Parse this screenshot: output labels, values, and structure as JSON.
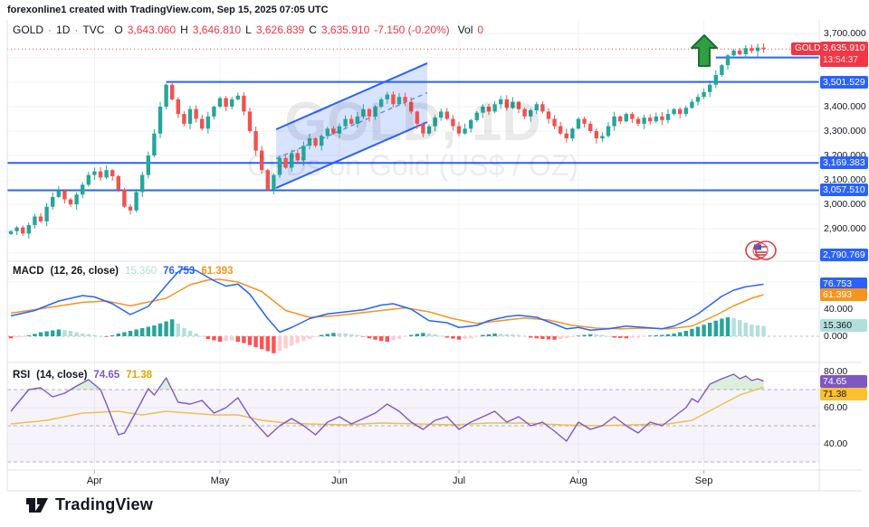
{
  "header": {
    "attribution": "forexonline1 created with TradingView.com, Sep 15, 2025 07:05 UTC"
  },
  "legend": {
    "symbol": "GOLD",
    "sep": "·",
    "interval": "1D",
    "exchange": "TVC",
    "o_label": "O",
    "o": "3,643.060",
    "h_label": "H",
    "h": "3,646.810",
    "l_label": "L",
    "l": "3,626.839",
    "c_label": "C",
    "c": "3,635.910",
    "change": "-7.150 (-0.20%)",
    "vol_label": "Vol",
    "vol": "0"
  },
  "watermark": {
    "title": "GOLD, 1D",
    "subtitle": "CFDs on Gold (US$ / OZ)"
  },
  "macd_legend": {
    "title": "MACD",
    "params": "(12, 26, close)",
    "hist": "15.360",
    "macd": "76.753",
    "signal": "61.393"
  },
  "rsi_legend": {
    "title": "RSI",
    "params": "(14, close)",
    "rsi": "74.65",
    "ma": "71.38"
  },
  "symbol_badge": {
    "text": "GOLD"
  },
  "current_price": {
    "price": "3,635.910",
    "countdown": "13:54:37"
  },
  "footer": {
    "brand": "TradingView"
  },
  "colors": {
    "up": "#26a69a",
    "down": "#ef5350",
    "level_blue": "#2962ff",
    "price_red": "#f23645",
    "macd_line": "#2962ff",
    "macd_signal": "#f7941e",
    "hist_pos": "#26a69a",
    "hist_pos_weak": "#b2dfdb",
    "hist_neg": "#ff5252",
    "hist_neg_weak": "#ffcdd2",
    "rsi_line": "#7e57c2",
    "rsi_ma": "#eac055",
    "grid": "#f0f3fa",
    "border": "#e0e3eb",
    "arrow_green": "#2f9e44"
  },
  "price_scale": {
    "plain_labels": [
      {
        "text": "3,700.000",
        "value": 3700
      },
      {
        "text": "3,400.000",
        "value": 3400
      },
      {
        "text": "3,300.000",
        "value": 3300
      },
      {
        "text": "3,200.000",
        "value": 3200
      },
      {
        "text": "3,100.000",
        "value": 3100
      },
      {
        "text": "3,000.000",
        "value": 3000
      },
      {
        "text": "2,900.000",
        "value": 2900
      }
    ],
    "badges": [
      {
        "text": "3,601.421",
        "value": 3601.421,
        "line_from_i": 118
      },
      {
        "text": "3,501.529",
        "value": 3501.529,
        "line_from_i": 26
      },
      {
        "text": "3,169.383",
        "value": 3169.383,
        "line_from_i": -0.6
      },
      {
        "text": "3,057.510",
        "value": 3057.51,
        "line_from_i": -0.6
      },
      {
        "text": "2,790.769",
        "value": 2790.769,
        "line_from_i": null
      }
    ],
    "gridline_values": [
      3700,
      3600,
      3500,
      3400,
      3300,
      3200,
      3100,
      3000,
      2900,
      2800
    ]
  },
  "macd_scale": {
    "plain_labels": [
      {
        "text": "40.000",
        "value": 40
      },
      {
        "text": "0.000",
        "value": 0
      }
    ],
    "badges": [
      {
        "text": "76.753",
        "value": 76.753,
        "color": "#2962ff",
        "text_color": "#ffffff"
      },
      {
        "text": "61.393",
        "value": 61.393,
        "color": "#f7941e",
        "text_color": "#ffffff"
      },
      {
        "text": "15.360",
        "value": 15.36,
        "color": "#b2dfdb",
        "text_color": "#131722"
      }
    ],
    "gridline_values": [
      80,
      40
    ]
  },
  "rsi_scale": {
    "plain_labels": [
      {
        "text": "80.00",
        "value": 80
      },
      {
        "text": "60.00",
        "value": 60
      },
      {
        "text": "40.00",
        "value": 40
      }
    ],
    "badges": [
      {
        "text": "74.65",
        "value": 74.65,
        "color": "#7e57c2",
        "text_color": "#ffffff"
      },
      {
        "text": "71.38",
        "value": 71.38,
        "color": "#fbc02d",
        "text_color": "#131722"
      }
    ],
    "gridline_values": [
      80,
      60,
      40
    ]
  },
  "chart_data": {
    "type": "candlestick-with-indicators",
    "symbol": "GOLD",
    "interval": "1D",
    "exchange": "TVC",
    "ohlc_readout": {
      "open": 3643.06,
      "high": 3646.81,
      "low": 3626.839,
      "close": 3635.91,
      "change": -7.15,
      "change_pct": -0.2,
      "volume": 0
    },
    "current_price": 3635.91,
    "price_axis_range": [
      2770,
      3755
    ],
    "closes": [
      2890,
      2905,
      2880,
      2915,
      2950,
      2930,
      2990,
      3030,
      3055,
      3020,
      3000,
      3040,
      3080,
      3120,
      3135,
      3110,
      3140,
      3115,
      3060,
      2990,
      2975,
      3050,
      3120,
      3200,
      3290,
      3400,
      3490,
      3430,
      3370,
      3330,
      3390,
      3350,
      3310,
      3360,
      3400,
      3435,
      3400,
      3430,
      3445,
      3380,
      3300,
      3220,
      3140,
      3060,
      3120,
      3190,
      3150,
      3210,
      3180,
      3240,
      3270,
      3240,
      3280,
      3310,
      3290,
      3320,
      3350,
      3330,
      3360,
      3390,
      3360,
      3400,
      3430,
      3450,
      3410,
      3440,
      3420,
      3380,
      3330,
      3290,
      3320,
      3355,
      3380,
      3350,
      3320,
      3290,
      3310,
      3345,
      3375,
      3400,
      3380,
      3410,
      3430,
      3395,
      3420,
      3390,
      3360,
      3385,
      3410,
      3380,
      3350,
      3320,
      3290,
      3270,
      3310,
      3350,
      3330,
      3300,
      3270,
      3280,
      3320,
      3360,
      3340,
      3370,
      3350,
      3330,
      3355,
      3340,
      3360,
      3345,
      3370,
      3390,
      3370,
      3395,
      3420,
      3440,
      3460,
      3490,
      3530,
      3570,
      3610,
      3630,
      3615,
      3640,
      3628,
      3642,
      3636
    ],
    "month_ticks": [
      {
        "label": "Apr",
        "i": 14
      },
      {
        "label": "May",
        "i": 35
      },
      {
        "label": "Jun",
        "i": 55
      },
      {
        "label": "Jul",
        "i": 75
      },
      {
        "label": "Aug",
        "i": 95
      },
      {
        "label": "Sep",
        "i": 116
      }
    ],
    "levels": [
      3601.421,
      3501.529,
      3169.383,
      3057.51,
      2790.769
    ],
    "channel": {
      "start_i": 44.4,
      "end_i": 69.7,
      "top_start": 3307,
      "top_end": 3578,
      "bottom_start": 3067,
      "bottom_end": 3337
    },
    "macd": {
      "params": [
        12,
        26,
        "close"
      ],
      "axis_range": [
        -35,
        103
      ],
      "line_anchors": [
        [
          0,
          30
        ],
        [
          4,
          38
        ],
        [
          8,
          52
        ],
        [
          12,
          60
        ],
        [
          14,
          58
        ],
        [
          17,
          48
        ],
        [
          20,
          32
        ],
        [
          23,
          44
        ],
        [
          26,
          75
        ],
        [
          28,
          95
        ],
        [
          29,
          100
        ],
        [
          31,
          97
        ],
        [
          34,
          82
        ],
        [
          36,
          74
        ],
        [
          38,
          77
        ],
        [
          40,
          62
        ],
        [
          43,
          26
        ],
        [
          45,
          6
        ],
        [
          47,
          13
        ],
        [
          50,
          26
        ],
        [
          53,
          33
        ],
        [
          56,
          36
        ],
        [
          59,
          39
        ],
        [
          62,
          46
        ],
        [
          64,
          48
        ],
        [
          67,
          40
        ],
        [
          70,
          23
        ],
        [
          73,
          20
        ],
        [
          75,
          13
        ],
        [
          78,
          16
        ],
        [
          80,
          23
        ],
        [
          83,
          29
        ],
        [
          85,
          31
        ],
        [
          88,
          28
        ],
        [
          91,
          18
        ],
        [
          93,
          11
        ],
        [
          95,
          13
        ],
        [
          97,
          9
        ],
        [
          100,
          11
        ],
        [
          103,
          15
        ],
        [
          106,
          13
        ],
        [
          109,
          11
        ],
        [
          111,
          15
        ],
        [
          113,
          23
        ],
        [
          115,
          33
        ],
        [
          117,
          46
        ],
        [
          119,
          59
        ],
        [
          121,
          68
        ],
        [
          123,
          73
        ],
        [
          126,
          76.753
        ]
      ],
      "signal_anchors": [
        [
          0,
          34
        ],
        [
          6,
          42
        ],
        [
          12,
          50
        ],
        [
          16,
          52
        ],
        [
          20,
          45
        ],
        [
          26,
          56
        ],
        [
          30,
          76
        ],
        [
          33,
          83
        ],
        [
          35,
          84
        ],
        [
          38,
          80
        ],
        [
          42,
          66
        ],
        [
          46,
          38
        ],
        [
          50,
          28
        ],
        [
          54,
          30
        ],
        [
          58,
          34
        ],
        [
          62,
          38
        ],
        [
          66,
          42
        ],
        [
          70,
          36
        ],
        [
          74,
          26
        ],
        [
          78,
          19
        ],
        [
          82,
          23
        ],
        [
          86,
          27
        ],
        [
          90,
          24
        ],
        [
          94,
          16
        ],
        [
          98,
          12
        ],
        [
          102,
          11
        ],
        [
          106,
          12
        ],
        [
          110,
          11
        ],
        [
          114,
          15
        ],
        [
          118,
          31
        ],
        [
          121,
          45
        ],
        [
          124,
          56
        ],
        [
          126,
          61.393
        ]
      ],
      "hist_anchors": [
        [
          0,
          -3
        ],
        [
          2,
          -1
        ],
        [
          5,
          6
        ],
        [
          8,
          10
        ],
        [
          10,
          8
        ],
        [
          12,
          4
        ],
        [
          14,
          2
        ],
        [
          16,
          -1
        ],
        [
          18,
          4
        ],
        [
          20,
          8
        ],
        [
          22,
          12
        ],
        [
          24,
          16
        ],
        [
          26,
          22
        ],
        [
          27,
          25
        ],
        [
          29,
          12
        ],
        [
          31,
          4
        ],
        [
          33,
          -4
        ],
        [
          35,
          -8
        ],
        [
          37,
          -6
        ],
        [
          39,
          -10
        ],
        [
          41,
          -16
        ],
        [
          43,
          -22
        ],
        [
          44,
          -25
        ],
        [
          46,
          -18
        ],
        [
          48,
          -10
        ],
        [
          50,
          -4
        ],
        [
          52,
          2
        ],
        [
          54,
          5
        ],
        [
          56,
          4
        ],
        [
          58,
          2
        ],
        [
          60,
          -3
        ],
        [
          62,
          -7
        ],
        [
          63,
          -8
        ],
        [
          65,
          -4
        ],
        [
          67,
          2
        ],
        [
          69,
          5
        ],
        [
          71,
          3
        ],
        [
          73,
          -2
        ],
        [
          75,
          -5
        ],
        [
          77,
          -3
        ],
        [
          79,
          2
        ],
        [
          81,
          4
        ],
        [
          83,
          3
        ],
        [
          85,
          2
        ],
        [
          87,
          -2
        ],
        [
          89,
          -4
        ],
        [
          91,
          -5
        ],
        [
          93,
          -3
        ],
        [
          95,
          1
        ],
        [
          97,
          3
        ],
        [
          99,
          2
        ],
        [
          101,
          -2
        ],
        [
          103,
          -3
        ],
        [
          105,
          -2
        ],
        [
          107,
          1
        ],
        [
          109,
          2
        ],
        [
          111,
          4
        ],
        [
          113,
          8
        ],
        [
          115,
          14
        ],
        [
          117,
          20
        ],
        [
          119,
          26
        ],
        [
          120,
          28
        ],
        [
          121,
          27
        ],
        [
          122,
          24
        ],
        [
          123,
          20
        ],
        [
          124,
          17
        ],
        [
          126,
          15.36
        ]
      ],
      "last_values": {
        "macd": 76.753,
        "signal": 61.393,
        "hist": 15.36
      }
    },
    "rsi": {
      "params": [
        14,
        "close"
      ],
      "axis_range": [
        25,
        85
      ],
      "guides": [
        70,
        50,
        30
      ],
      "band": [
        30,
        70
      ],
      "line_anchors": [
        [
          0,
          58
        ],
        [
          2,
          66
        ],
        [
          3,
          70
        ],
        [
          5,
          71
        ],
        [
          7,
          66
        ],
        [
          9,
          68
        ],
        [
          11,
          72
        ],
        [
          13,
          75.5
        ],
        [
          15,
          70
        ],
        [
          16,
          62
        ],
        [
          18,
          45
        ],
        [
          19,
          46
        ],
        [
          21,
          58
        ],
        [
          23,
          70.5
        ],
        [
          24,
          67
        ],
        [
          26,
          76.5
        ],
        [
          28,
          63
        ],
        [
          30,
          62
        ],
        [
          32,
          64
        ],
        [
          34,
          57
        ],
        [
          36,
          60
        ],
        [
          38,
          65.5
        ],
        [
          40,
          55
        ],
        [
          43,
          44
        ],
        [
          45,
          50
        ],
        [
          47,
          54
        ],
        [
          49,
          50
        ],
        [
          51,
          45
        ],
        [
          53,
          52
        ],
        [
          55,
          55
        ],
        [
          57,
          51
        ],
        [
          59,
          54
        ],
        [
          61,
          57
        ],
        [
          63,
          62
        ],
        [
          65,
          58
        ],
        [
          67,
          52
        ],
        [
          69,
          48
        ],
        [
          71,
          53
        ],
        [
          73,
          55
        ],
        [
          75,
          48
        ],
        [
          77,
          52
        ],
        [
          79,
          55
        ],
        [
          81,
          58
        ],
        [
          83,
          52
        ],
        [
          85,
          55
        ],
        [
          87,
          50
        ],
        [
          89,
          52
        ],
        [
          91,
          47
        ],
        [
          93,
          41.5
        ],
        [
          95,
          52
        ],
        [
          97,
          48
        ],
        [
          99,
          50
        ],
        [
          101,
          55
        ],
        [
          103,
          50
        ],
        [
          105,
          46
        ],
        [
          107,
          52
        ],
        [
          109,
          50
        ],
        [
          111,
          55
        ],
        [
          113,
          60
        ],
        [
          114,
          65
        ],
        [
          115,
          63
        ],
        [
          117,
          73
        ],
        [
          119,
          76
        ],
        [
          121,
          78.5
        ],
        [
          122,
          76
        ],
        [
          123,
          77.5
        ],
        [
          124,
          75
        ],
        [
          125,
          76
        ],
        [
          126,
          74.65
        ]
      ],
      "ma_anchors": [
        [
          0,
          51
        ],
        [
          6,
          53
        ],
        [
          12,
          57
        ],
        [
          18,
          58
        ],
        [
          22,
          56
        ],
        [
          26,
          58
        ],
        [
          30,
          57
        ],
        [
          34,
          56
        ],
        [
          38,
          56
        ],
        [
          42,
          53
        ],
        [
          46,
          51.5
        ],
        [
          50,
          51
        ],
        [
          56,
          50.5
        ],
        [
          62,
          51.5
        ],
        [
          68,
          51
        ],
        [
          74,
          50.5
        ],
        [
          80,
          51.5
        ],
        [
          86,
          51.5
        ],
        [
          92,
          50.5
        ],
        [
          98,
          50
        ],
        [
          104,
          50.5
        ],
        [
          110,
          51
        ],
        [
          114,
          53
        ],
        [
          118,
          60
        ],
        [
          122,
          67
        ],
        [
          126,
          71.38
        ]
      ],
      "last_values": {
        "rsi": 74.65,
        "ma": 71.38
      }
    },
    "annotations": {
      "arrow_up": {
        "i": 116,
        "near_price": 3690,
        "meaning": "breakout-up-arrow"
      },
      "flag_icon": {
        "i": 125.5,
        "near_price": 2816,
        "meaning": "us-flag-event-marker"
      }
    }
  }
}
